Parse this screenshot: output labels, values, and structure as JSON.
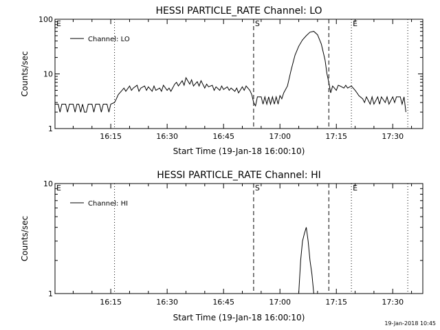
{
  "footer": {
    "timestamp": "19-Jan-2018 10:45"
  },
  "chart_data": [
    {
      "type": "line",
      "title": "HESSI PARTICLE_RATE Channel: LO",
      "xlabel": "Start Time (19-Jan-18 16:00:10)",
      "ylabel": "Counts/sec",
      "y_scale": "log",
      "ylim": [
        1,
        100
      ],
      "y_ticks": [
        1,
        10,
        100
      ],
      "y_tick_labels": [
        "1",
        "10",
        "100"
      ],
      "xlim": [
        "16:00:10",
        "17:38:00"
      ],
      "x_ticks": [
        "16:15",
        "16:30",
        "16:45",
        "17:00",
        "17:15",
        "17:30"
      ],
      "legend": {
        "position": "top-left",
        "entries": [
          "Channel: LO"
        ]
      },
      "markers": [
        {
          "label": "E",
          "time": "16:00:10",
          "style": "none"
        },
        {
          "label": "",
          "time": "16:16",
          "style": "dotted"
        },
        {
          "label": "S",
          "time": "16:53",
          "style": "dashed"
        },
        {
          "label": "",
          "time": "17:13",
          "style": "dashed"
        },
        {
          "label": "E",
          "time": "17:19",
          "style": "dotted"
        },
        {
          "label": "",
          "time": "17:34",
          "style": "dotted"
        }
      ],
      "series": [
        {
          "name": "Channel: LO",
          "points": [
            [
              "16:00:10",
              2.8
            ],
            [
              "16:01",
              2.8
            ],
            [
              "16:01:30",
              2.0
            ],
            [
              "16:02",
              2.8
            ],
            [
              "16:03",
              2.8
            ],
            [
              "16:03:30",
              2.0
            ],
            [
              "16:04",
              2.8
            ],
            [
              "16:05",
              2.8
            ],
            [
              "16:05:30",
              2.0
            ],
            [
              "16:06",
              2.8
            ],
            [
              "16:06:30",
              2.8
            ],
            [
              "16:07",
              2.0
            ],
            [
              "16:07:30",
              2.8
            ],
            [
              "16:08",
              2.0
            ],
            [
              "16:08:30",
              2.0
            ],
            [
              "16:09",
              2.8
            ],
            [
              "16:10",
              2.8
            ],
            [
              "16:10:30",
              2.0
            ],
            [
              "16:11",
              2.8
            ],
            [
              "16:12",
              2.8
            ],
            [
              "16:12:30",
              2.0
            ],
            [
              "16:13",
              2.8
            ],
            [
              "16:14",
              2.8
            ],
            [
              "16:14:30",
              2.0
            ],
            [
              "16:15",
              2.8
            ],
            [
              "16:16",
              3.0
            ],
            [
              "16:16:30",
              3.5
            ],
            [
              "16:17",
              4.2
            ],
            [
              "16:18",
              5.0
            ],
            [
              "16:18:30",
              5.5
            ],
            [
              "16:19",
              4.8
            ],
            [
              "16:20",
              6.0
            ],
            [
              "16:20:30",
              5.0
            ],
            [
              "16:21",
              5.5
            ],
            [
              "16:22",
              6.2
            ],
            [
              "16:22:30",
              4.8
            ],
            [
              "16:23",
              5.5
            ],
            [
              "16:24",
              6.0
            ],
            [
              "16:24:30",
              5.0
            ],
            [
              "16:25",
              5.8
            ],
            [
              "16:26",
              4.8
            ],
            [
              "16:26:30",
              6.0
            ],
            [
              "16:27",
              5.0
            ],
            [
              "16:28",
              5.5
            ],
            [
              "16:28:30",
              4.8
            ],
            [
              "16:29",
              6.2
            ],
            [
              "16:30",
              5.0
            ],
            [
              "16:30:30",
              5.5
            ],
            [
              "16:31",
              4.8
            ],
            [
              "16:32",
              6.5
            ],
            [
              "16:32:30",
              7.0
            ],
            [
              "16:33",
              6.0
            ],
            [
              "16:34",
              7.5
            ],
            [
              "16:34:30",
              6.2
            ],
            [
              "16:35",
              8.5
            ],
            [
              "16:36",
              6.5
            ],
            [
              "16:36:30",
              7.8
            ],
            [
              "16:37",
              6.0
            ],
            [
              "16:38",
              7.2
            ],
            [
              "16:38:30",
              6.0
            ],
            [
              "16:39",
              7.5
            ],
            [
              "16:40",
              5.5
            ],
            [
              "16:40:30",
              6.5
            ],
            [
              "16:41",
              5.8
            ],
            [
              "16:42",
              6.2
            ],
            [
              "16:42:30",
              5.0
            ],
            [
              "16:43",
              5.8
            ],
            [
              "16:44",
              5.0
            ],
            [
              "16:44:30",
              6.0
            ],
            [
              "16:45",
              5.2
            ],
            [
              "16:46",
              5.8
            ],
            [
              "16:46:30",
              5.0
            ],
            [
              "16:47",
              5.5
            ],
            [
              "16:48",
              4.8
            ],
            [
              "16:48:30",
              5.5
            ],
            [
              "16:49",
              4.5
            ],
            [
              "16:50",
              5.8
            ],
            [
              "16:50:30",
              5.0
            ],
            [
              "16:51",
              6.0
            ],
            [
              "16:52",
              5.0
            ],
            [
              "16:52:30",
              4.2
            ],
            [
              "16:53",
              3.0
            ],
            [
              "16:53:30",
              2.6
            ],
            [
              "16:54",
              3.8
            ],
            [
              "16:55",
              3.8
            ],
            [
              "16:55:30",
              2.8
            ],
            [
              "16:56",
              3.8
            ],
            [
              "16:56:30",
              2.8
            ],
            [
              "16:57",
              3.8
            ],
            [
              "16:57:30",
              2.8
            ],
            [
              "16:58",
              3.8
            ],
            [
              "16:58:30",
              2.8
            ],
            [
              "16:59",
              3.8
            ],
            [
              "16:59:30",
              2.8
            ],
            [
              "17:00",
              4.0
            ],
            [
              "17:00:30",
              3.5
            ],
            [
              "17:01",
              4.5
            ],
            [
              "17:02",
              6.0
            ],
            [
              "17:03",
              12.0
            ],
            [
              "17:04",
              22.0
            ],
            [
              "17:05",
              32.0
            ],
            [
              "17:06",
              42.0
            ],
            [
              "17:07",
              50.0
            ],
            [
              "17:08",
              58.0
            ],
            [
              "17:09",
              60.0
            ],
            [
              "17:10",
              52.0
            ],
            [
              "17:11",
              35.0
            ],
            [
              "17:12",
              18.0
            ],
            [
              "17:12:30",
              10.0
            ],
            [
              "17:13",
              7.0
            ],
            [
              "17:13:30",
              4.5
            ],
            [
              "17:14",
              6.0
            ],
            [
              "17:15",
              5.0
            ],
            [
              "17:15:30",
              6.2
            ],
            [
              "17:16",
              6.0
            ],
            [
              "17:17",
              5.5
            ],
            [
              "17:17:30",
              6.2
            ],
            [
              "17:18",
              5.5
            ],
            [
              "17:19",
              6.0
            ],
            [
              "17:20",
              5.0
            ],
            [
              "17:20:30",
              4.5
            ],
            [
              "17:21",
              4.0
            ],
            [
              "17:22",
              3.5
            ],
            [
              "17:22:30",
              3.0
            ],
            [
              "17:23",
              3.8
            ],
            [
              "17:24",
              2.8
            ],
            [
              "17:24:30",
              3.8
            ],
            [
              "17:25",
              2.8
            ],
            [
              "17:26",
              3.8
            ],
            [
              "17:26:30",
              2.8
            ],
            [
              "17:27",
              3.8
            ],
            [
              "17:28",
              3.0
            ],
            [
              "17:28:30",
              3.8
            ],
            [
              "17:29",
              2.8
            ],
            [
              "17:30",
              3.8
            ],
            [
              "17:30:30",
              3.0
            ],
            [
              "17:31",
              3.8
            ],
            [
              "17:32",
              3.8
            ],
            [
              "17:32:30",
              2.8
            ],
            [
              "17:33",
              3.8
            ],
            [
              "17:33:30",
              2.0
            ]
          ]
        }
      ]
    },
    {
      "type": "line",
      "title": "HESSI PARTICLE_RATE Channel: HI",
      "xlabel": "Start Time (19-Jan-18 16:00:10)",
      "ylabel": "Counts/sec",
      "y_scale": "log",
      "ylim": [
        1,
        10
      ],
      "y_ticks": [
        1,
        10
      ],
      "y_tick_labels": [
        "1",
        "10"
      ],
      "xlim": [
        "16:00:10",
        "17:38:00"
      ],
      "x_ticks": [
        "16:15",
        "16:30",
        "16:45",
        "17:00",
        "17:15",
        "17:30"
      ],
      "legend": {
        "position": "top-left",
        "entries": [
          "Channel: HI"
        ]
      },
      "markers": [
        {
          "label": "E",
          "time": "16:00:10",
          "style": "none"
        },
        {
          "label": "",
          "time": "16:16",
          "style": "dotted"
        },
        {
          "label": "S",
          "time": "16:53",
          "style": "dashed"
        },
        {
          "label": "",
          "time": "17:13",
          "style": "dashed"
        },
        {
          "label": "E",
          "time": "17:19",
          "style": "dotted"
        },
        {
          "label": "",
          "time": "17:34",
          "style": "dotted"
        }
      ],
      "series": [
        {
          "name": "Channel: HI",
          "points": [
            [
              "17:05",
              1.0
            ],
            [
              "17:05:30",
              2.0
            ],
            [
              "17:06",
              3.0
            ],
            [
              "17:06:30",
              3.5
            ],
            [
              "17:07",
              4.0
            ],
            [
              "17:07:30",
              3.0
            ],
            [
              "17:08",
              2.0
            ],
            [
              "17:08:30",
              1.5
            ],
            [
              "17:09",
              1.0
            ]
          ]
        }
      ]
    }
  ]
}
